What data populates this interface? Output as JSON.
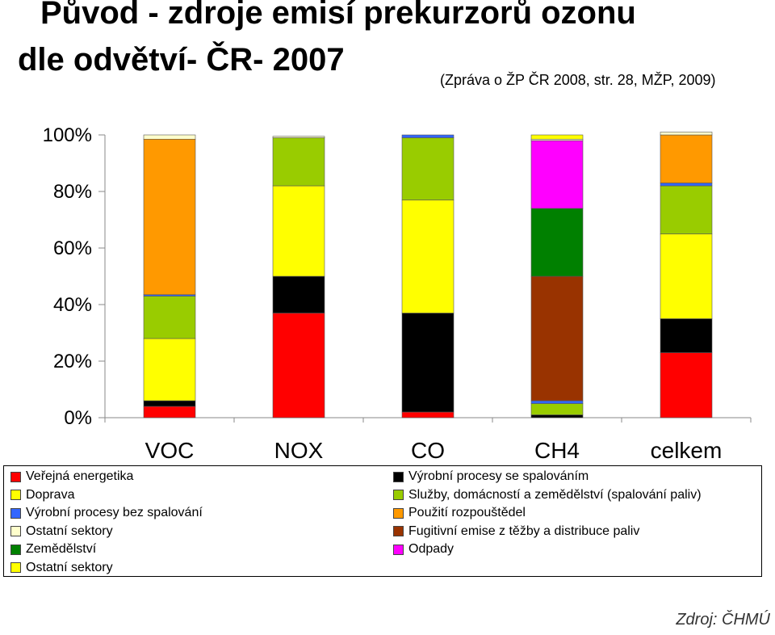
{
  "title_line1": "Původ - zdroje emisí prekurzorů ozonu",
  "title_line2": "dle odvětví- ČR- 2007",
  "subtitle": "(Zpráva o ŽP ČR 2008, str. 28, MŽP, 2009)",
  "source": "Zdroj: ČHMÚ",
  "chart_data": {
    "type": "bar",
    "stacked": true,
    "categories": [
      "VOC",
      "NOX",
      "CO",
      "CH4",
      "celkem"
    ],
    "ylim": [
      0,
      100
    ],
    "yticks": [
      "0%",
      "20%",
      "40%",
      "60%",
      "80%",
      "100%"
    ],
    "grid": false,
    "legend_position": "bottom",
    "series": [
      {
        "name": "Veřejná energetika",
        "color": "#ff0000",
        "values": [
          4,
          37,
          2,
          0,
          23
        ]
      },
      {
        "name": "Výrobní procesy se spalováním",
        "color": "#000000",
        "values": [
          2,
          13,
          35,
          1,
          12
        ]
      },
      {
        "name": "Doprava",
        "color": "#ffff00",
        "values": [
          22,
          32,
          40,
          0,
          30
        ]
      },
      {
        "name": "Služby, domácností a zemědělství (spalování paliv)",
        "color": "#99cc00",
        "values": [
          15,
          17,
          22,
          4,
          17
        ]
      },
      {
        "name": "Výrobní procesy bez spalování",
        "color": "#3366ff",
        "values": [
          0.5,
          0,
          1,
          1,
          1
        ]
      },
      {
        "name": "Fugitivní emise z těžby a distribuce paliv",
        "color": "#993300",
        "values": [
          0,
          0,
          0,
          44,
          0
        ]
      },
      {
        "name": "Zemědělství",
        "color": "#008000",
        "values": [
          0,
          0,
          0,
          24,
          0
        ]
      },
      {
        "name": "Odpady",
        "color": "#ff00ff",
        "values": [
          0,
          0,
          0,
          24,
          0
        ]
      },
      {
        "name": "Použití rozpouštědel",
        "color": "#ff9900",
        "values": [
          55,
          0,
          0,
          0,
          17
        ]
      },
      {
        "name": "Ostatní sektory",
        "color": "#ffffcc",
        "values": [
          1.5,
          0.5,
          0,
          0.5,
          1
        ]
      },
      {
        "name": "Ostatní sektory",
        "color": "#ffff00",
        "values": [
          0,
          0,
          0,
          1.5,
          0
        ]
      },
      {
        "name": "Výrobní procesy se spalováním",
        "color": "#000000",
        "values": [
          0,
          0,
          0,
          0,
          0
        ]
      }
    ]
  },
  "legend": {
    "left": [
      {
        "label": "Veřejná energetika",
        "color": "#ff0000"
      },
      {
        "label": "Doprava",
        "color": "#ffff00"
      },
      {
        "label": "Výrobní procesy bez spalování",
        "color": "#3366ff"
      },
      {
        "label": "Ostatní sektory",
        "color": "#ffffcc"
      },
      {
        "label": "Zemědělství",
        "color": "#008000"
      },
      {
        "label": "Ostatní sektory",
        "color": "#ffff00"
      }
    ],
    "right": [
      {
        "label": "Výrobní procesy se spalováním",
        "color": "#000000"
      },
      {
        "label": "Služby, domácností a zemědělství (spalování paliv)",
        "color": "#99cc00"
      },
      {
        "label": "Použití rozpouštědel",
        "color": "#ff9900"
      },
      {
        "label": "Fugitivní emise z těžby a distribuce paliv",
        "color": "#993300"
      },
      {
        "label": "Odpady",
        "color": "#ff00ff"
      }
    ]
  }
}
